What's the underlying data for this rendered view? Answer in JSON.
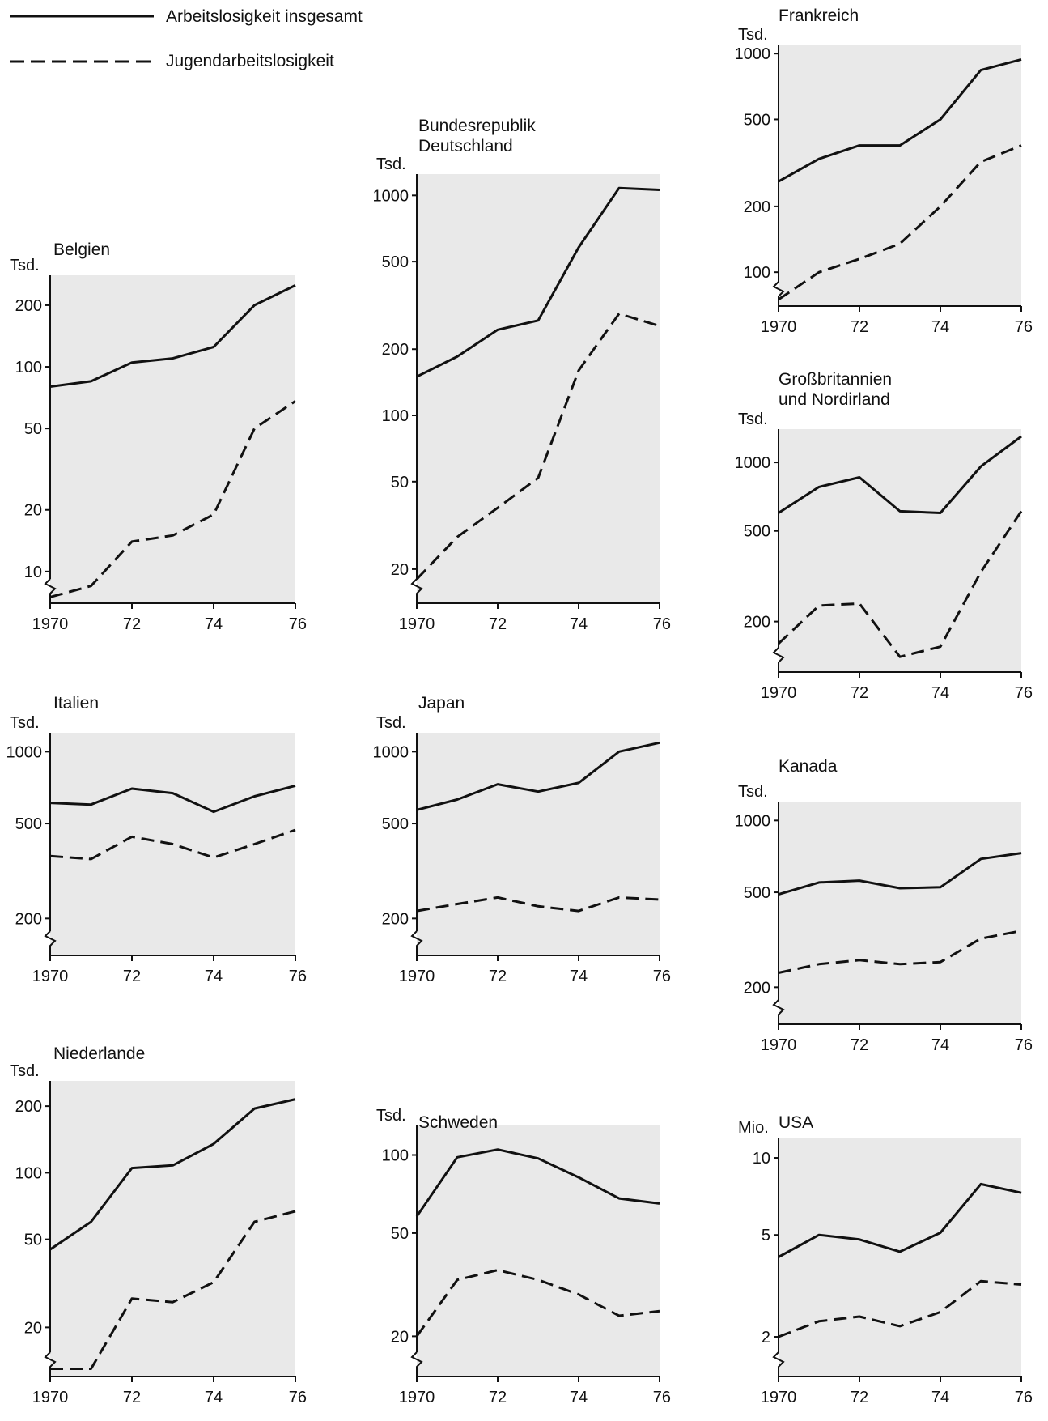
{
  "legend": {
    "total_label": "Arbeitslosigkeit insgesamt",
    "youth_label": "Jugendarbeitslosigkeit"
  },
  "chart_data": [
    {
      "type": "line",
      "title": "Belgien",
      "ylabel": "Tsd.",
      "yscale": "log",
      "ylim": [
        7,
        280
      ],
      "yticks": [
        10,
        20,
        50,
        100,
        200
      ],
      "ytick_labels": [
        "10",
        "20",
        "50",
        "100",
        "200"
      ],
      "x": [
        1970,
        1971,
        1972,
        1973,
        1974,
        1975,
        1976
      ],
      "xticks": [
        1970,
        1972,
        1974,
        1976
      ],
      "xtick_labels": [
        "1970",
        "72",
        "74",
        "76"
      ],
      "series": [
        {
          "name": "Arbeitslosigkeit insgesamt",
          "style": "solid",
          "values": [
            80,
            85,
            105,
            110,
            125,
            200,
            250
          ]
        },
        {
          "name": "Jugendarbeitslosigkeit",
          "style": "dashed",
          "values": [
            7.5,
            8.5,
            14,
            15,
            19,
            50,
            68
          ]
        }
      ]
    },
    {
      "type": "line",
      "title": "Bundesrepublik Deutschland",
      "ylabel": "Tsd.",
      "yscale": "log",
      "ylim": [
        14,
        1250
      ],
      "yticks": [
        20,
        50,
        100,
        200,
        500,
        1000
      ],
      "ytick_labels": [
        "20",
        "50",
        "100",
        "200",
        "500",
        "1000"
      ],
      "x": [
        1970,
        1971,
        1972,
        1973,
        1974,
        1975,
        1976
      ],
      "xticks": [
        1970,
        1972,
        1974,
        1976
      ],
      "xtick_labels": [
        "1970",
        "72",
        "74",
        "76"
      ],
      "series": [
        {
          "name": "Arbeitslosigkeit insgesamt",
          "style": "solid",
          "values": [
            150,
            185,
            245,
            270,
            580,
            1080,
            1060
          ]
        },
        {
          "name": "Jugendarbeitslosigkeit",
          "style": "dashed",
          "values": [
            18,
            28,
            38,
            52,
            160,
            290,
            255
          ]
        }
      ]
    },
    {
      "type": "line",
      "title": "Frankreich",
      "ylabel": "Tsd.",
      "yscale": "log",
      "ylim": [
        70,
        1100
      ],
      "yticks": [
        100,
        200,
        500,
        1000
      ],
      "ytick_labels": [
        "100",
        "200",
        "500",
        "1000"
      ],
      "x": [
        1970,
        1971,
        1972,
        1973,
        1974,
        1975,
        1976
      ],
      "xticks": [
        1970,
        1972,
        1974,
        1976
      ],
      "xtick_labels": [
        "1970",
        "72",
        "74",
        "76"
      ],
      "series": [
        {
          "name": "Arbeitslosigkeit insgesamt",
          "style": "solid",
          "values": [
            260,
            330,
            380,
            380,
            500,
            840,
            940
          ]
        },
        {
          "name": "Jugendarbeitslosigkeit",
          "style": "dashed",
          "values": [
            75,
            100,
            115,
            135,
            200,
            320,
            380
          ]
        }
      ]
    },
    {
      "type": "line",
      "title": "Großbritannien und Nordirland",
      "ylabel": "Tsd.",
      "yscale": "log",
      "ylim": [
        120,
        1400
      ],
      "yticks": [
        200,
        500,
        1000
      ],
      "ytick_labels": [
        "200",
        "500",
        "1000"
      ],
      "x": [
        1970,
        1971,
        1972,
        1973,
        1974,
        1975,
        1976
      ],
      "xticks": [
        1970,
        1972,
        1974,
        1976
      ],
      "xtick_labels": [
        "1970",
        "72",
        "74",
        "76"
      ],
      "series": [
        {
          "name": "Arbeitslosigkeit insgesamt",
          "style": "solid",
          "values": [
            600,
            780,
            860,
            610,
            600,
            960,
            1300
          ]
        },
        {
          "name": "Jugendarbeitslosigkeit",
          "style": "dashed",
          "values": [
            160,
            235,
            240,
            140,
            155,
            330,
            610
          ]
        }
      ]
    },
    {
      "type": "line",
      "title": "Italien",
      "ylabel": "Tsd.",
      "yscale": "log",
      "ylim": [
        140,
        1200
      ],
      "yticks": [
        200,
        500,
        1000
      ],
      "ytick_labels": [
        "200",
        "500",
        "1000"
      ],
      "x": [
        1970,
        1971,
        1972,
        1973,
        1974,
        1975,
        1976
      ],
      "xticks": [
        1970,
        1972,
        1974,
        1976
      ],
      "xtick_labels": [
        "1970",
        "72",
        "74",
        "76"
      ],
      "series": [
        {
          "name": "Arbeitslosigkeit insgesamt",
          "style": "solid",
          "values": [
            610,
            600,
            700,
            670,
            560,
            650,
            720
          ]
        },
        {
          "name": "Jugendarbeitslosigkeit",
          "style": "dashed",
          "values": [
            365,
            355,
            440,
            410,
            360,
            410,
            470
          ]
        }
      ]
    },
    {
      "type": "line",
      "title": "Japan",
      "ylabel": "Tsd.",
      "yscale": "log",
      "ylim": [
        140,
        1200
      ],
      "yticks": [
        200,
        500,
        1000
      ],
      "ytick_labels": [
        "200",
        "500",
        "1000"
      ],
      "x": [
        1970,
        1971,
        1972,
        1973,
        1974,
        1975,
        1976
      ],
      "xticks": [
        1970,
        1972,
        1974,
        1976
      ],
      "xtick_labels": [
        "1970",
        "72",
        "74",
        "76"
      ],
      "series": [
        {
          "name": "Arbeitslosigkeit insgesamt",
          "style": "solid",
          "values": [
            570,
            630,
            730,
            680,
            740,
            1000,
            1090
          ]
        },
        {
          "name": "Jugendarbeitslosigkeit",
          "style": "dashed",
          "values": [
            215,
            230,
            245,
            225,
            215,
            245,
            240
          ]
        }
      ]
    },
    {
      "type": "line",
      "title": "Kanada",
      "ylabel": "Tsd.",
      "yscale": "log",
      "ylim": [
        140,
        1200
      ],
      "yticks": [
        200,
        500,
        1000
      ],
      "ytick_labels": [
        "200",
        "500",
        "1000"
      ],
      "x": [
        1970,
        1971,
        1972,
        1973,
        1974,
        1975,
        1976
      ],
      "xticks": [
        1970,
        1972,
        1974,
        1976
      ],
      "xtick_labels": [
        "1970",
        "72",
        "74",
        "76"
      ],
      "series": [
        {
          "name": "Arbeitslosigkeit insgesamt",
          "style": "solid",
          "values": [
            490,
            550,
            560,
            520,
            525,
            690,
            730
          ]
        },
        {
          "name": "Jugendarbeitslosigkeit",
          "style": "dashed",
          "values": [
            230,
            250,
            260,
            250,
            255,
            320,
            345
          ]
        }
      ]
    },
    {
      "type": "line",
      "title": "Niederlande",
      "ylabel": "Tsd.",
      "yscale": "log",
      "ylim": [
        12,
        260
      ],
      "yticks": [
        20,
        50,
        100,
        200
      ],
      "ytick_labels": [
        "20",
        "50",
        "100",
        "200"
      ],
      "x": [
        1970,
        1971,
        1972,
        1973,
        1974,
        1975,
        1976
      ],
      "xticks": [
        1970,
        1972,
        1974,
        1976
      ],
      "xtick_labels": [
        "1970",
        "72",
        "74",
        "76"
      ],
      "series": [
        {
          "name": "Arbeitslosigkeit insgesamt",
          "style": "solid",
          "values": [
            45,
            60,
            105,
            108,
            135,
            195,
            215
          ]
        },
        {
          "name": "Jugendarbeitslosigkeit",
          "style": "dashed",
          "values": [
            13,
            13,
            27,
            26,
            32,
            60,
            67
          ]
        }
      ]
    },
    {
      "type": "line",
      "title": "Schweden",
      "ylabel": "Tsd.",
      "yscale": "log",
      "ylim": [
        14,
        130
      ],
      "yticks": [
        20,
        50,
        100
      ],
      "ytick_labels": [
        "20",
        "50",
        "100"
      ],
      "x": [
        1970,
        1971,
        1972,
        1973,
        1974,
        1975,
        1976
      ],
      "xticks": [
        1970,
        1972,
        1974,
        1976
      ],
      "xtick_labels": [
        "1970",
        "72",
        "74",
        "76"
      ],
      "series": [
        {
          "name": "Arbeitslosigkeit insgesamt",
          "style": "solid",
          "values": [
            58,
            98,
            105,
            97,
            82,
            68,
            65
          ]
        },
        {
          "name": "Jugendarbeitslosigkeit",
          "style": "dashed",
          "values": [
            20,
            33,
            36,
            33,
            29,
            24,
            25
          ]
        }
      ]
    },
    {
      "type": "line",
      "title": "USA",
      "ylabel": "Mio.",
      "yscale": "log",
      "ylim": [
        1.4,
        12
      ],
      "yticks": [
        2,
        5,
        10
      ],
      "ytick_labels": [
        "2",
        "5",
        "10"
      ],
      "x": [
        1970,
        1971,
        1972,
        1973,
        1974,
        1975,
        1976
      ],
      "xticks": [
        1970,
        1972,
        1974,
        1976
      ],
      "xtick_labels": [
        "1970",
        "72",
        "74",
        "76"
      ],
      "series": [
        {
          "name": "Arbeitslosigkeit insgesamt",
          "style": "solid",
          "values": [
            4.1,
            5.0,
            4.8,
            4.3,
            5.1,
            7.9,
            7.3
          ]
        },
        {
          "name": "Jugendarbeitslosigkeit",
          "style": "dashed",
          "values": [
            2.0,
            2.3,
            2.4,
            2.2,
            2.5,
            3.3,
            3.2
          ]
        }
      ]
    }
  ]
}
